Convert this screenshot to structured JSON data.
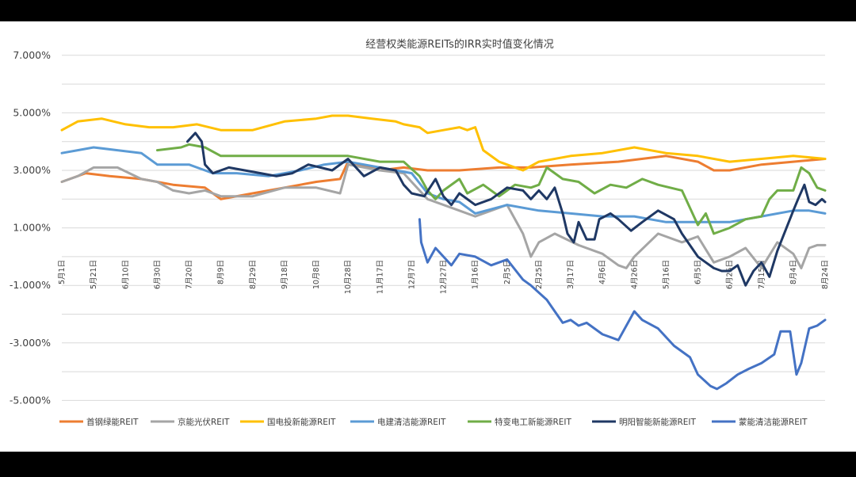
{
  "chart_data": {
    "type": "line",
    "title": "经营权类能源REITs的IRR实时值变化情况",
    "xlabel": "",
    "ylabel": "",
    "ylim": [
      -6.0,
      7.0
    ],
    "yticks": [
      "7.000%",
      "5.000%",
      "3.000%",
      "1.000%",
      "-1.000%",
      "-3.000%",
      "-5.000%"
    ],
    "ytick_values": [
      7,
      5,
      3,
      1,
      -1,
      -3,
      -5
    ],
    "grid": true,
    "legend_position": "bottom",
    "x_start_day": 0,
    "x_end_day": 480,
    "xtick_labels": [
      "5月1日",
      "5月21日",
      "6月10日",
      "6月30日",
      "7月20日",
      "8月9日",
      "8月29日",
      "9月18日",
      "10月8日",
      "10月28日",
      "11月17日",
      "12月7日",
      "12月27日",
      "1月16日",
      "2月5日",
      "2月25日",
      "3月17日",
      "4月6日",
      "4月26日",
      "5月16日",
      "6月5日",
      "6月25日",
      "7月15日",
      "8月4日",
      "8月24日"
    ],
    "xtick_days": [
      0,
      20,
      40,
      60,
      80,
      100,
      120,
      140,
      160,
      180,
      200,
      220,
      240,
      260,
      280,
      300,
      320,
      340,
      360,
      380,
      400,
      420,
      440,
      460,
      480
    ],
    "series": [
      {
        "name": "首钢绿能REIT",
        "color": "#ed7d31",
        "x": [
          0,
          15,
          30,
          50,
          70,
          90,
          100,
          120,
          140,
          160,
          175,
          180,
          200,
          215,
          230,
          250,
          275,
          295,
          320,
          350,
          380,
          400,
          410,
          420,
          440,
          460,
          480
        ],
        "y": [
          2.6,
          2.9,
          2.8,
          2.7,
          2.5,
          2.4,
          2.0,
          2.2,
          2.4,
          2.6,
          2.7,
          3.3,
          3.0,
          3.1,
          3.0,
          3.0,
          3.1,
          3.1,
          3.2,
          3.3,
          3.5,
          3.3,
          3.0,
          3.0,
          3.2,
          3.3,
          3.4
        ]
      },
      {
        "name": "京能光伏REIT",
        "color": "#a5a5a5",
        "x": [
          0,
          10,
          20,
          35,
          50,
          60,
          70,
          80,
          90,
          100,
          120,
          140,
          160,
          175,
          180,
          200,
          215,
          230,
          250,
          260,
          270,
          280,
          290,
          295,
          300,
          310,
          325,
          340,
          350,
          355,
          360,
          375,
          390,
          400,
          410,
          420,
          430,
          440,
          450,
          460,
          465,
          470,
          475,
          480
        ],
        "y": [
          2.6,
          2.8,
          3.1,
          3.1,
          2.7,
          2.6,
          2.3,
          2.2,
          2.3,
          2.1,
          2.1,
          2.4,
          2.4,
          2.2,
          3.2,
          3.0,
          2.9,
          2.0,
          1.6,
          1.4,
          1.6,
          1.8,
          0.8,
          0.0,
          0.5,
          0.8,
          0.4,
          0.1,
          -0.3,
          -0.4,
          0.0,
          0.8,
          0.5,
          0.7,
          -0.2,
          0.0,
          0.3,
          -0.4,
          0.5,
          0.1,
          -0.4,
          0.3,
          0.4,
          0.4
        ]
      },
      {
        "name": "国电投新能源REIT",
        "color": "#ffc000",
        "x": [
          0,
          10,
          25,
          40,
          55,
          70,
          85,
          100,
          120,
          140,
          160,
          170,
          180,
          195,
          210,
          215,
          225,
          230,
          240,
          250,
          255,
          260,
          265,
          275,
          290,
          300,
          320,
          340,
          360,
          380,
          400,
          420,
          440,
          460,
          480
        ],
        "y": [
          4.4,
          4.7,
          4.8,
          4.6,
          4.5,
          4.5,
          4.6,
          4.4,
          4.4,
          4.7,
          4.8,
          4.9,
          4.9,
          4.8,
          4.7,
          4.6,
          4.5,
          4.3,
          4.4,
          4.5,
          4.4,
          4.5,
          3.7,
          3.3,
          3.0,
          3.3,
          3.5,
          3.6,
          3.8,
          3.6,
          3.5,
          3.3,
          3.4,
          3.5,
          3.4
        ]
      },
      {
        "name": "电建清洁能源REIT",
        "color": "#5b9bd5",
        "x": [
          0,
          10,
          20,
          35,
          50,
          60,
          80,
          95,
          110,
          130,
          150,
          165,
          180,
          200,
          210,
          220,
          230,
          240,
          250,
          260,
          280,
          300,
          320,
          340,
          360,
          380,
          400,
          420,
          440,
          460,
          470,
          480
        ],
        "y": [
          3.6,
          3.7,
          3.8,
          3.7,
          3.6,
          3.2,
          3.2,
          2.9,
          2.9,
          2.8,
          3.0,
          3.2,
          3.3,
          3.1,
          3.0,
          2.9,
          2.2,
          2.0,
          1.9,
          1.5,
          1.8,
          1.6,
          1.5,
          1.4,
          1.4,
          1.2,
          1.2,
          1.2,
          1.4,
          1.6,
          1.6,
          1.5
        ]
      },
      {
        "name": "特变电工新能源REIT",
        "color": "#70ad47",
        "x": [
          60,
          75,
          80,
          90,
          100,
          120,
          140,
          160,
          180,
          200,
          215,
          225,
          230,
          235,
          240,
          250,
          255,
          265,
          275,
          285,
          295,
          300,
          305,
          315,
          325,
          335,
          345,
          355,
          365,
          375,
          390,
          400,
          405,
          410,
          420,
          430,
          440,
          445,
          450,
          460,
          465,
          470,
          475,
          480
        ],
        "y": [
          3.7,
          3.8,
          3.9,
          3.8,
          3.5,
          3.5,
          3.5,
          3.5,
          3.5,
          3.3,
          3.3,
          2.8,
          2.3,
          2.0,
          2.3,
          2.7,
          2.2,
          2.5,
          2.1,
          2.5,
          2.4,
          2.5,
          3.1,
          2.7,
          2.6,
          2.2,
          2.5,
          2.4,
          2.7,
          2.5,
          2.3,
          1.1,
          1.5,
          0.8,
          1.0,
          1.3,
          1.4,
          2.0,
          2.3,
          2.3,
          3.1,
          2.9,
          2.4,
          2.3
        ]
      },
      {
        "name": "明阳智能新能源REIT",
        "color": "#1f3864",
        "x": [
          79,
          84,
          88,
          90,
          95,
          105,
          115,
          125,
          135,
          145,
          155,
          170,
          180,
          190,
          200,
          210,
          215,
          220,
          228,
          235,
          240,
          245,
          250,
          260,
          270,
          280,
          290,
          295,
          300,
          305,
          310,
          315,
          318,
          322,
          325,
          330,
          335,
          338,
          345,
          350,
          358,
          365,
          375,
          385,
          390,
          400,
          405,
          410,
          415,
          420,
          425,
          430,
          435,
          440,
          445,
          450,
          460,
          463,
          467,
          470,
          474,
          478,
          480
        ],
        "y": [
          4.0,
          4.3,
          4.0,
          3.2,
          2.9,
          3.1,
          3.0,
          2.9,
          2.8,
          2.9,
          3.2,
          3.0,
          3.4,
          2.8,
          3.1,
          3.0,
          2.5,
          2.2,
          2.1,
          2.7,
          2.1,
          1.8,
          2.2,
          1.8,
          2.0,
          2.4,
          2.3,
          2.0,
          2.3,
          2.0,
          2.4,
          1.5,
          0.8,
          0.5,
          1.2,
          0.6,
          0.6,
          1.3,
          1.5,
          1.3,
          0.9,
          1.2,
          1.6,
          1.3,
          0.8,
          0.0,
          -0.2,
          -0.4,
          -0.5,
          -0.5,
          -0.3,
          -1.0,
          -0.5,
          -0.2,
          -0.7,
          0.2,
          1.6,
          2.0,
          2.5,
          1.9,
          1.8,
          2.0,
          1.9
        ]
      },
      {
        "name": "蒙能清洁能源REIT",
        "color": "#4472c4",
        "x": [
          225,
          226,
          230,
          235,
          240,
          245,
          250,
          260,
          270,
          280,
          290,
          295,
          305,
          310,
          315,
          320,
          325,
          330,
          340,
          350,
          360,
          365,
          375,
          385,
          395,
          400,
          408,
          412,
          418,
          425,
          432,
          440,
          448,
          452,
          458,
          462,
          465,
          470,
          475,
          480
        ],
        "y": [
          1.3,
          0.5,
          -0.2,
          0.3,
          0.0,
          -0.3,
          0.1,
          0.0,
          -0.3,
          -0.1,
          -0.8,
          -1.0,
          -1.5,
          -1.9,
          -2.3,
          -2.2,
          -2.4,
          -2.3,
          -2.7,
          -2.9,
          -1.9,
          -2.2,
          -2.5,
          -3.1,
          -3.5,
          -4.1,
          -4.5,
          -4.6,
          -4.4,
          -4.1,
          -3.9,
          -3.7,
          -3.4,
          -2.6,
          -2.6,
          -4.1,
          -3.7,
          -2.5,
          -2.4,
          -2.2
        ]
      }
    ]
  }
}
